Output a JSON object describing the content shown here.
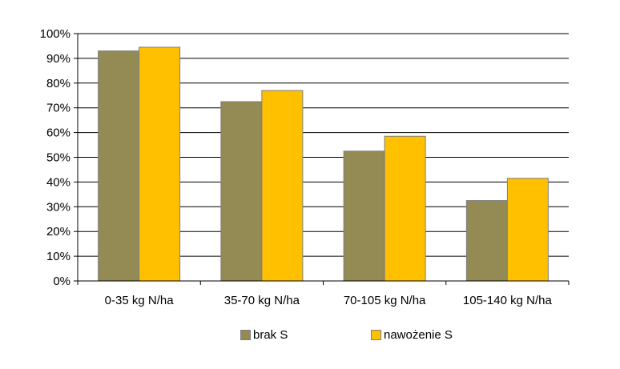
{
  "chart_data": {
    "type": "bar",
    "categories": [
      "0-35 kg N/ha",
      "35-70 kg N/ha",
      "70-105 kg N/ha",
      "105-140 kg N/ha"
    ],
    "series": [
      {
        "name": "brak S",
        "color": "#948a54",
        "values": [
          93,
          72.5,
          52.5,
          32.5
        ]
      },
      {
        "name": "nawożenie S",
        "color": "#ffc000",
        "values": [
          94.5,
          77,
          58.5,
          41.5
        ]
      }
    ],
    "y_ticks": [
      "0%",
      "10%",
      "20%",
      "30%",
      "40%",
      "50%",
      "60%",
      "70%",
      "80%",
      "90%",
      "100%"
    ],
    "ylim": [
      0,
      100
    ],
    "grid": true,
    "legend_position": "bottom"
  }
}
